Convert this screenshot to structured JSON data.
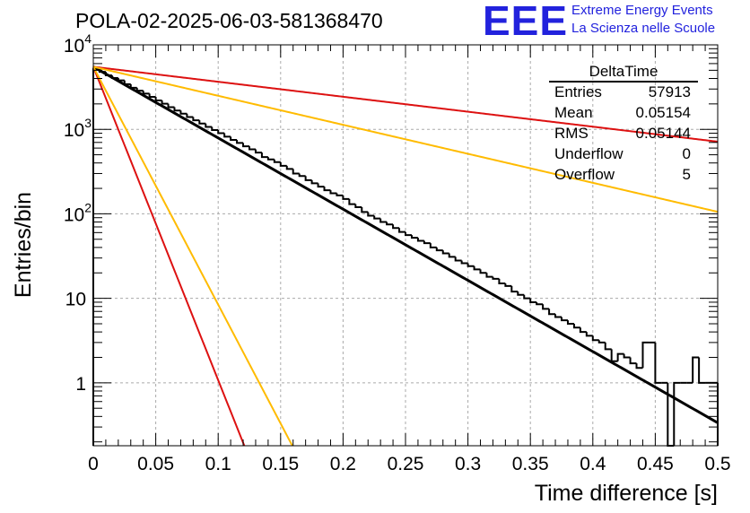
{
  "title": "POLA-02-2025-06-03-581368470",
  "logo": {
    "mark": "EEE",
    "line1": "Extreme Energy Events",
    "line2": "La Scienza nelle Scuole",
    "color": "#2222dd"
  },
  "stats": {
    "name": "DeltaTime",
    "rows": [
      {
        "key": "Entries",
        "value": "57913"
      },
      {
        "key": "Mean",
        "value": "0.05154"
      },
      {
        "key": "RMS",
        "value": "0.05144"
      },
      {
        "key": "Underflow",
        "value": "0"
      },
      {
        "key": "Overflow",
        "value": "5"
      }
    ]
  },
  "chart_data": {
    "type": "line",
    "title": "POLA-02-2025-06-03-581368470",
    "xlabel": "Time difference [s]",
    "ylabel": "Entries/bin",
    "xlim": [
      0,
      0.5
    ],
    "ylim": [
      0.18,
      10000
    ],
    "yscale": "log",
    "grid": true,
    "x_ticks": [
      "0",
      "0.05",
      "0.1",
      "0.15",
      "0.2",
      "0.25",
      "0.3",
      "0.35",
      "0.4",
      "0.45",
      "0.5"
    ],
    "y_ticks": [
      {
        "value": 1,
        "label": "1",
        "sup": ""
      },
      {
        "value": 10,
        "label": "10",
        "sup": ""
      },
      {
        "value": 100,
        "label": "10",
        "sup": "2"
      },
      {
        "value": 1000,
        "label": "10",
        "sup": "3"
      },
      {
        "value": 10000,
        "label": "10",
        "sup": "4"
      }
    ],
    "histogram": {
      "bin_width": 0.005,
      "values": [
        5150,
        4790,
        4350,
        4050,
        3800,
        3420,
        3100,
        2870,
        2650,
        2420,
        2200,
        2010,
        1830,
        1670,
        1530,
        1400,
        1280,
        1170,
        1070,
        980,
        900,
        820,
        750,
        690,
        630,
        580,
        530,
        470,
        440,
        410,
        370,
        340,
        300,
        280,
        250,
        230,
        210,
        190,
        175,
        165,
        150,
        130,
        120,
        105,
        95,
        88,
        80,
        75,
        68,
        61,
        56,
        52,
        48,
        45,
        40,
        37,
        34,
        31,
        28,
        26,
        24,
        22,
        20,
        18,
        17,
        15,
        14,
        12,
        11,
        10,
        9,
        8.5,
        7.5,
        6.5,
        6.0,
        5.5,
        5.0,
        4.5,
        4.0,
        3.6,
        3.2,
        3.0,
        2.5,
        1.8,
        2.2,
        2.0,
        1.7,
        1.5,
        3.0,
        3.0,
        1.0,
        1.0,
        0.18,
        1.0,
        1.0,
        1.0,
        2.0,
        1.0,
        1.0,
        1.0
      ],
      "color": "#000000"
    },
    "series": [
      {
        "amplitude": 5500,
        "tau": 0.05154,
        "color": "#000000",
        "width": 3
      },
      {
        "amplitude": 5500,
        "tau": 0.245,
        "color": "#dd1111",
        "width": 2
      },
      {
        "amplitude": 5500,
        "tau": 0.1265,
        "color": "#ffbb00",
        "width": 2
      },
      {
        "amplitude": 5500,
        "tau": 0.01171,
        "color": "#dd1111",
        "width": 2
      },
      {
        "amplitude": 5500,
        "tau": 0.01543,
        "color": "#ffbb00",
        "width": 2
      }
    ]
  }
}
